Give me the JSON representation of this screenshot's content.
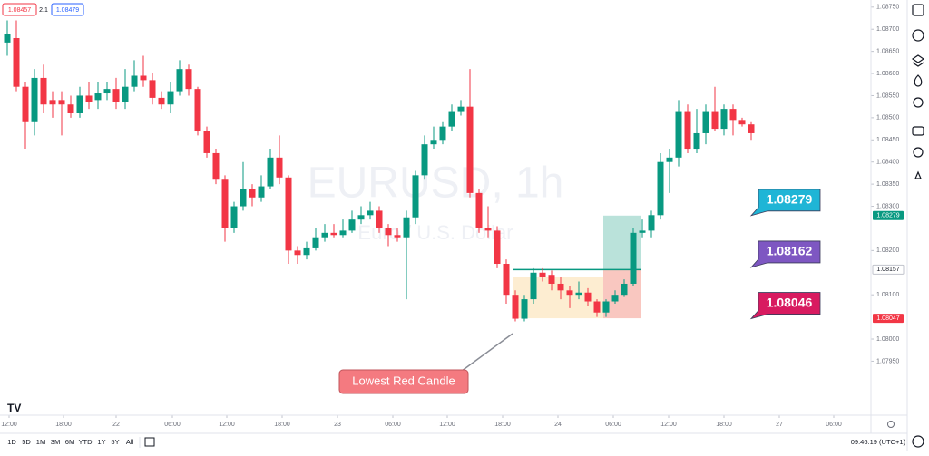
{
  "toolbar_top": {
    "bid": 1.08457,
    "spread": 2.1,
    "ask": 1.08479
  },
  "chart_data": {
    "type": "candlestick",
    "watermark_title": "EURUSD, 1h",
    "watermark_subtitle": "Euro / U.S. Dollar",
    "up_color": "#089981",
    "down_color": "#f23645",
    "ohlc": [
      [
        1.0867,
        1.0872,
        1.0864,
        1.0869
      ],
      [
        1.0868,
        1.0872,
        1.0856,
        1.0857
      ],
      [
        1.0857,
        1.0858,
        1.0843,
        1.0849
      ],
      [
        1.0849,
        1.0861,
        1.0846,
        1.0859
      ],
      [
        1.0859,
        1.0862,
        1.0851,
        1.0853
      ],
      [
        1.0854,
        1.0856,
        1.085,
        1.0853
      ],
      [
        1.0854,
        1.0856,
        1.0846,
        1.0853
      ],
      [
        1.0853,
        1.0855,
        1.085,
        1.0851
      ],
      [
        1.0851,
        1.0857,
        1.085,
        1.0855
      ],
      [
        1.0855,
        1.0858,
        1.0852,
        1.08535
      ],
      [
        1.0854,
        1.0858,
        1.0852,
        1.08555
      ],
      [
        1.08555,
        1.0858,
        1.0854,
        1.08565
      ],
      [
        1.08565,
        1.0859,
        1.0852,
        1.08535
      ],
      [
        1.08535,
        1.0861,
        1.0852,
        1.0857
      ],
      [
        1.0857,
        1.0863,
        1.0856,
        1.08595
      ],
      [
        1.08595,
        1.0864,
        1.0857,
        1.08585
      ],
      [
        1.08585,
        1.086,
        1.0853,
        1.08545
      ],
      [
        1.08545,
        1.0856,
        1.0852,
        1.0853
      ],
      [
        1.0853,
        1.0858,
        1.0851,
        1.0856
      ],
      [
        1.0856,
        1.0863,
        1.0855,
        1.0861
      ],
      [
        1.0861,
        1.0862,
        1.0855,
        1.08565
      ],
      [
        1.08565,
        1.0857,
        1.0846,
        1.0847
      ],
      [
        1.0847,
        1.0848,
        1.0841,
        1.0842
      ],
      [
        1.0842,
        1.0843,
        1.0835,
        1.0836
      ],
      [
        1.0836,
        1.0837,
        1.0822,
        1.0825
      ],
      [
        1.0825,
        1.0831,
        1.0824,
        1.083
      ],
      [
        1.083,
        1.084,
        1.0829,
        1.0834
      ],
      [
        1.0834,
        1.0835,
        1.083,
        1.0832
      ],
      [
        1.0832,
        1.0837,
        1.0831,
        1.08345
      ],
      [
        1.08345,
        1.0843,
        1.0834,
        1.0841
      ],
      [
        1.0841,
        1.0846,
        1.0835,
        1.08365
      ],
      [
        1.08365,
        1.0837,
        1.0817,
        1.082
      ],
      [
        1.082,
        1.0821,
        1.0817,
        1.0819
      ],
      [
        1.0819,
        1.0822,
        1.0818,
        1.08205
      ],
      [
        1.08205,
        1.0825,
        1.082,
        1.0823
      ],
      [
        1.0823,
        1.0826,
        1.0822,
        1.0824
      ],
      [
        1.0824,
        1.0826,
        1.0823,
        1.08235
      ],
      [
        1.08235,
        1.0827,
        1.0823,
        1.08245
      ],
      [
        1.08245,
        1.0829,
        1.0824,
        1.0827
      ],
      [
        1.0827,
        1.083,
        1.0826,
        1.0828
      ],
      [
        1.0828,
        1.0831,
        1.0827,
        1.0829
      ],
      [
        1.0829,
        1.083,
        1.0824,
        1.0825
      ],
      [
        1.0825,
        1.0826,
        1.0821,
        1.08235
      ],
      [
        1.08235,
        1.0825,
        1.0822,
        1.0823
      ],
      [
        1.0823,
        1.0829,
        1.0809,
        1.08275
      ],
      [
        1.08275,
        1.0838,
        1.0826,
        1.0837
      ],
      [
        1.0837,
        1.0846,
        1.0836,
        1.0844
      ],
      [
        1.0844,
        1.0848,
        1.0843,
        1.0845
      ],
      [
        1.0845,
        1.0849,
        1.0844,
        1.0848
      ],
      [
        1.0848,
        1.0853,
        1.0847,
        1.08515
      ],
      [
        1.08515,
        1.0854,
        1.08505,
        1.08525
      ],
      [
        1.08525,
        1.0861,
        1.0832,
        1.0833
      ],
      [
        1.0833,
        1.0834,
        1.0824,
        1.0825
      ],
      [
        1.0825,
        1.083,
        1.0823,
        1.08245
      ],
      [
        1.08245,
        1.08255,
        1.0816,
        1.0817
      ],
      [
        1.0817,
        1.0818,
        1.0808,
        1.081
      ],
      [
        1.081,
        1.0811,
        1.0804,
        1.08046
      ],
      [
        1.08046,
        1.081,
        1.0804,
        1.0809
      ],
      [
        1.0809,
        1.0816,
        1.0808,
        1.0815
      ],
      [
        1.0815,
        1.0816,
        1.0813,
        1.0814
      ],
      [
        1.08145,
        1.08155,
        1.0811,
        1.08125
      ],
      [
        1.08125,
        1.0814,
        1.0809,
        1.0811
      ],
      [
        1.0811,
        1.0812,
        1.0807,
        1.081
      ],
      [
        1.081,
        1.0813,
        1.0809,
        1.08105
      ],
      [
        1.08105,
        1.08115,
        1.08075,
        1.08085
      ],
      [
        1.08085,
        1.0809,
        1.0805,
        1.0806
      ],
      [
        1.0806,
        1.0809,
        1.0805,
        1.08085
      ],
      [
        1.08085,
        1.0811,
        1.0808,
        1.081
      ],
      [
        1.081,
        1.08135,
        1.08095,
        1.08125
      ],
      [
        1.08125,
        1.0825,
        1.0812,
        1.0824
      ],
      [
        1.0824,
        1.0827,
        1.0823,
        1.08245
      ],
      [
        1.08245,
        1.0829,
        1.0823,
        1.0828
      ],
      [
        1.0828,
        1.0842,
        1.0827,
        1.084
      ],
      [
        1.084,
        1.0843,
        1.0833,
        1.0841
      ],
      [
        1.0841,
        1.0854,
        1.0839,
        1.08515
      ],
      [
        1.08515,
        1.0853,
        1.0842,
        1.0843
      ],
      [
        1.0843,
        1.0852,
        1.0842,
        1.08465
      ],
      [
        1.08465,
        1.0853,
        1.0844,
        1.08515
      ],
      [
        1.08515,
        1.0857,
        1.0847,
        1.08475
      ],
      [
        1.08475,
        1.0853,
        1.0846,
        1.0852
      ],
      [
        1.0852,
        1.0853,
        1.0846,
        1.08495
      ],
      [
        1.08495,
        1.085,
        1.0848,
        1.08485
      ],
      [
        1.08485,
        1.0849,
        1.0845,
        1.08465
      ]
    ],
    "xlim": [
      -0.8,
      95.2
    ],
    "ylim": [
      1.07828,
      1.08766
    ],
    "xticks": [
      {
        "value": 0.2,
        "label": "12:00"
      },
      {
        "value": 6.2,
        "label": "18:00"
      },
      {
        "value": 12,
        "label": "22"
      },
      {
        "value": 18.2,
        "label": "06:00"
      },
      {
        "value": 24.2,
        "label": "12:00"
      },
      {
        "value": 30.3,
        "label": "18:00"
      },
      {
        "value": 36.4,
        "label": "23"
      },
      {
        "value": 42.5,
        "label": "06:00"
      },
      {
        "value": 48.5,
        "label": "12:00"
      },
      {
        "value": 54.6,
        "label": "18:00"
      },
      {
        "value": 60.7,
        "label": "24"
      },
      {
        "value": 66.8,
        "label": "06:00"
      },
      {
        "value": 72.9,
        "label": "12:00"
      },
      {
        "value": 79,
        "label": "18:00"
      },
      {
        "value": 85.1,
        "label": "27"
      },
      {
        "value": 91.1,
        "label": "06:00"
      }
    ],
    "yticks": [
      {
        "value": 1.0875,
        "label": "1.08750"
      },
      {
        "value": 1.087,
        "label": "1.08700"
      },
      {
        "value": 1.0865,
        "label": "1.08650"
      },
      {
        "value": 1.086,
        "label": "1.08600"
      },
      {
        "value": 1.0855,
        "label": "1.08550"
      },
      {
        "value": 1.085,
        "label": "1.08500"
      },
      {
        "value": 1.0845,
        "label": "1.08450"
      },
      {
        "value": 1.084,
        "label": "1.08400"
      },
      {
        "value": 1.0835,
        "label": "1.08350"
      },
      {
        "value": 1.083,
        "label": "1.08300"
      },
      {
        "value": 1.082,
        "label": "1.08200"
      },
      {
        "value": 1.081,
        "label": "1.08100"
      },
      {
        "value": 1.08,
        "label": "1.08000"
      },
      {
        "value": 1.0795,
        "label": "1.07950"
      }
    ],
    "price_tags": [
      {
        "value": 1.08279,
        "color": "#089981"
      },
      {
        "value": 1.08157,
        "color": "#ffffff"
      },
      {
        "value": 1.08047,
        "color": "#f23645"
      }
    ],
    "annotations": [
      {
        "value": 1.08279,
        "color": "#1fb5d6"
      },
      {
        "value": 1.08162,
        "color": "#7e57c2"
      },
      {
        "value": 1.08046,
        "color": "#d81b60"
      }
    ],
    "callout": "Lowest Red Candle"
  },
  "bottom_bar": {
    "ranges": [
      "1D",
      "5D",
      "1M",
      "3M",
      "6M",
      "YTD",
      "1Y",
      "5Y",
      "All"
    ],
    "clock": "09:46:19 (UTC+1)"
  }
}
